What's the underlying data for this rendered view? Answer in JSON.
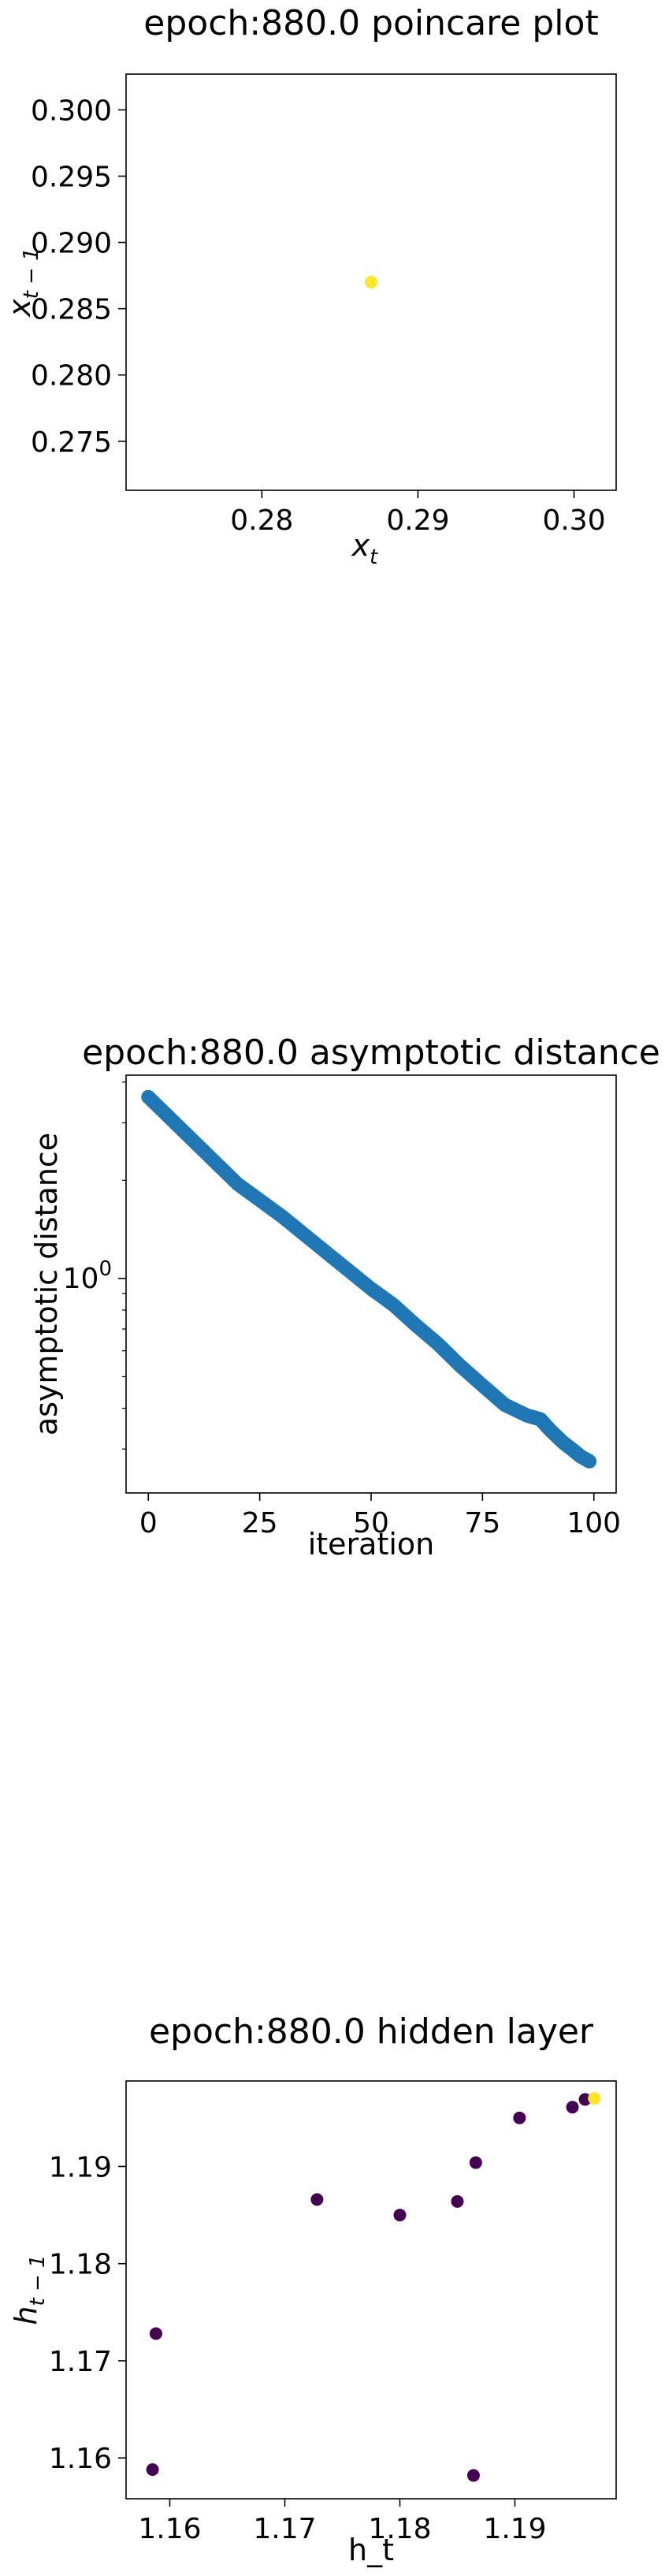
{
  "chart_data": [
    {
      "type": "scatter",
      "title": "epoch:880.0 poincare plot",
      "xlabel_main": "x",
      "xlabel_sub": "t",
      "ylabel_main": "x",
      "ylabel_sub": "t − 1",
      "xlim": [
        0.2713,
        0.3027
      ],
      "ylim": [
        0.2713,
        0.3027
      ],
      "xticks": [
        0.28,
        0.29,
        0.3
      ],
      "xtick_labels": [
        "0.28",
        "0.29",
        "0.30"
      ],
      "yticks": [
        0.275,
        0.28,
        0.285,
        0.29,
        0.295,
        0.3
      ],
      "ytick_labels": [
        "0.275",
        "0.280",
        "0.285",
        "0.290",
        "0.295",
        "0.300"
      ],
      "points": [
        {
          "x": 0.287,
          "y": 0.287,
          "color": "#fde725"
        }
      ]
    },
    {
      "type": "scatter",
      "title": "epoch:880.0 asymptotic distance",
      "xlabel": "iteration",
      "ylabel": "asymptotic distance",
      "yscale": "log",
      "xlim": [
        -5,
        105
      ],
      "ylim": [
        0.22,
        4.2
      ],
      "xticks": [
        0,
        25,
        50,
        75,
        100
      ],
      "xtick_labels": [
        "0",
        "25",
        "50",
        "75",
        "100"
      ],
      "yticks": [
        1
      ],
      "ytick_labels": [
        "10^0"
      ],
      "color": "#1f77b4",
      "x": [
        0,
        10,
        20,
        30,
        40,
        50,
        55,
        60,
        65,
        70,
        75,
        80,
        85,
        88,
        90,
        93,
        95,
        97,
        99
      ],
      "y": [
        3.6,
        2.65,
        1.95,
        1.55,
        1.2,
        0.93,
        0.83,
        0.72,
        0.63,
        0.54,
        0.47,
        0.41,
        0.38,
        0.37,
        0.345,
        0.315,
        0.3,
        0.285,
        0.275
      ]
    },
    {
      "type": "scatter",
      "title": "epoch:880.0 hidden layer",
      "xlabel": "h_t",
      "ylabel_main": "h",
      "ylabel_sub": "t − 1",
      "xlim": [
        1.1562,
        1.1988
      ],
      "ylim": [
        1.1558,
        1.1988
      ],
      "xticks": [
        1.16,
        1.17,
        1.18,
        1.19
      ],
      "xtick_labels": [
        "1.16",
        "1.17",
        "1.18",
        "1.19"
      ],
      "yticks": [
        1.16,
        1.17,
        1.18,
        1.19
      ],
      "ytick_labels": [
        "1.16",
        "1.17",
        "1.18",
        "1.19"
      ],
      "points": [
        {
          "x": 1.1585,
          "y": 1.1588,
          "color": "#440154"
        },
        {
          "x": 1.1588,
          "y": 1.1728,
          "color": "#440154"
        },
        {
          "x": 1.1728,
          "y": 1.1866,
          "color": "#440154"
        },
        {
          "x": 1.18,
          "y": 1.185,
          "color": "#440154"
        },
        {
          "x": 1.185,
          "y": 1.1864,
          "color": "#440154"
        },
        {
          "x": 1.1864,
          "y": 1.1582,
          "color": "#440154"
        },
        {
          "x": 1.1866,
          "y": 1.1904,
          "color": "#440154"
        },
        {
          "x": 1.1904,
          "y": 1.195,
          "color": "#440154"
        },
        {
          "x": 1.195,
          "y": 1.1961,
          "color": "#440154"
        },
        {
          "x": 1.1961,
          "y": 1.1969,
          "color": "#440154"
        },
        {
          "x": 1.1969,
          "y": 1.197,
          "color": "#fde725"
        }
      ]
    }
  ]
}
